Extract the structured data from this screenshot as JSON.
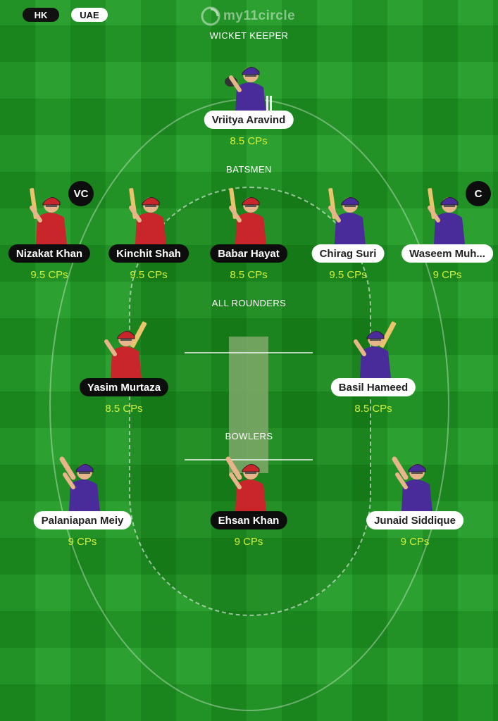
{
  "teams": [
    {
      "code": "HK",
      "jersey": "#c8262a"
    },
    {
      "code": "UAE",
      "jersey": "#4a2b9a"
    }
  ],
  "logo": {
    "text": "my11circle",
    "icon": "circle-logo-icon"
  },
  "colors": {
    "field": "#1e9a22",
    "cps_text": "#d4f03a"
  },
  "sections": {
    "wicket_keeper": "WICKET KEEPER",
    "batsmen": "BATSMEN",
    "all_rounders": "ALL ROUNDERS",
    "bowlers": "BOWLERS"
  },
  "players": {
    "wk": [
      {
        "name": "Vriitya Aravind",
        "cps": "8.5 CPs",
        "team": "UAE",
        "role_icon": "wicket-keeper-icon"
      }
    ],
    "bat": [
      {
        "name": "Nizakat Khan",
        "cps": "9.5 CPs",
        "team": "HK",
        "badge": "VC",
        "role_icon": "batsman-icon"
      },
      {
        "name": "Kinchit Shah",
        "cps": "9.5 CPs",
        "team": "HK",
        "role_icon": "batsman-icon"
      },
      {
        "name": "Babar Hayat",
        "cps": "8.5 CPs",
        "team": "HK",
        "role_icon": "batsman-icon"
      },
      {
        "name": "Chirag Suri",
        "cps": "9.5 CPs",
        "team": "UAE",
        "role_icon": "batsman-icon"
      },
      {
        "name": "Waseem Muh...",
        "cps": "9 CPs",
        "team": "UAE",
        "badge": "C",
        "role_icon": "batsman-icon"
      }
    ],
    "ar": [
      {
        "name": "Yasim Murtaza",
        "cps": "8.5 CPs",
        "team": "HK",
        "role_icon": "all-rounder-icon"
      },
      {
        "name": "Basil Hameed",
        "cps": "8.5 CPs",
        "team": "UAE",
        "role_icon": "all-rounder-icon"
      }
    ],
    "bowl": [
      {
        "name": "Palaniapan Meiy",
        "cps": "9 CPs",
        "team": "UAE",
        "role_icon": "bowler-icon"
      },
      {
        "name": "Ehsan Khan",
        "cps": "9 CPs",
        "team": "HK",
        "role_icon": "bowler-icon"
      },
      {
        "name": "Junaid Siddique",
        "cps": "9 CPs",
        "team": "UAE",
        "role_icon": "bowler-icon"
      }
    ]
  }
}
